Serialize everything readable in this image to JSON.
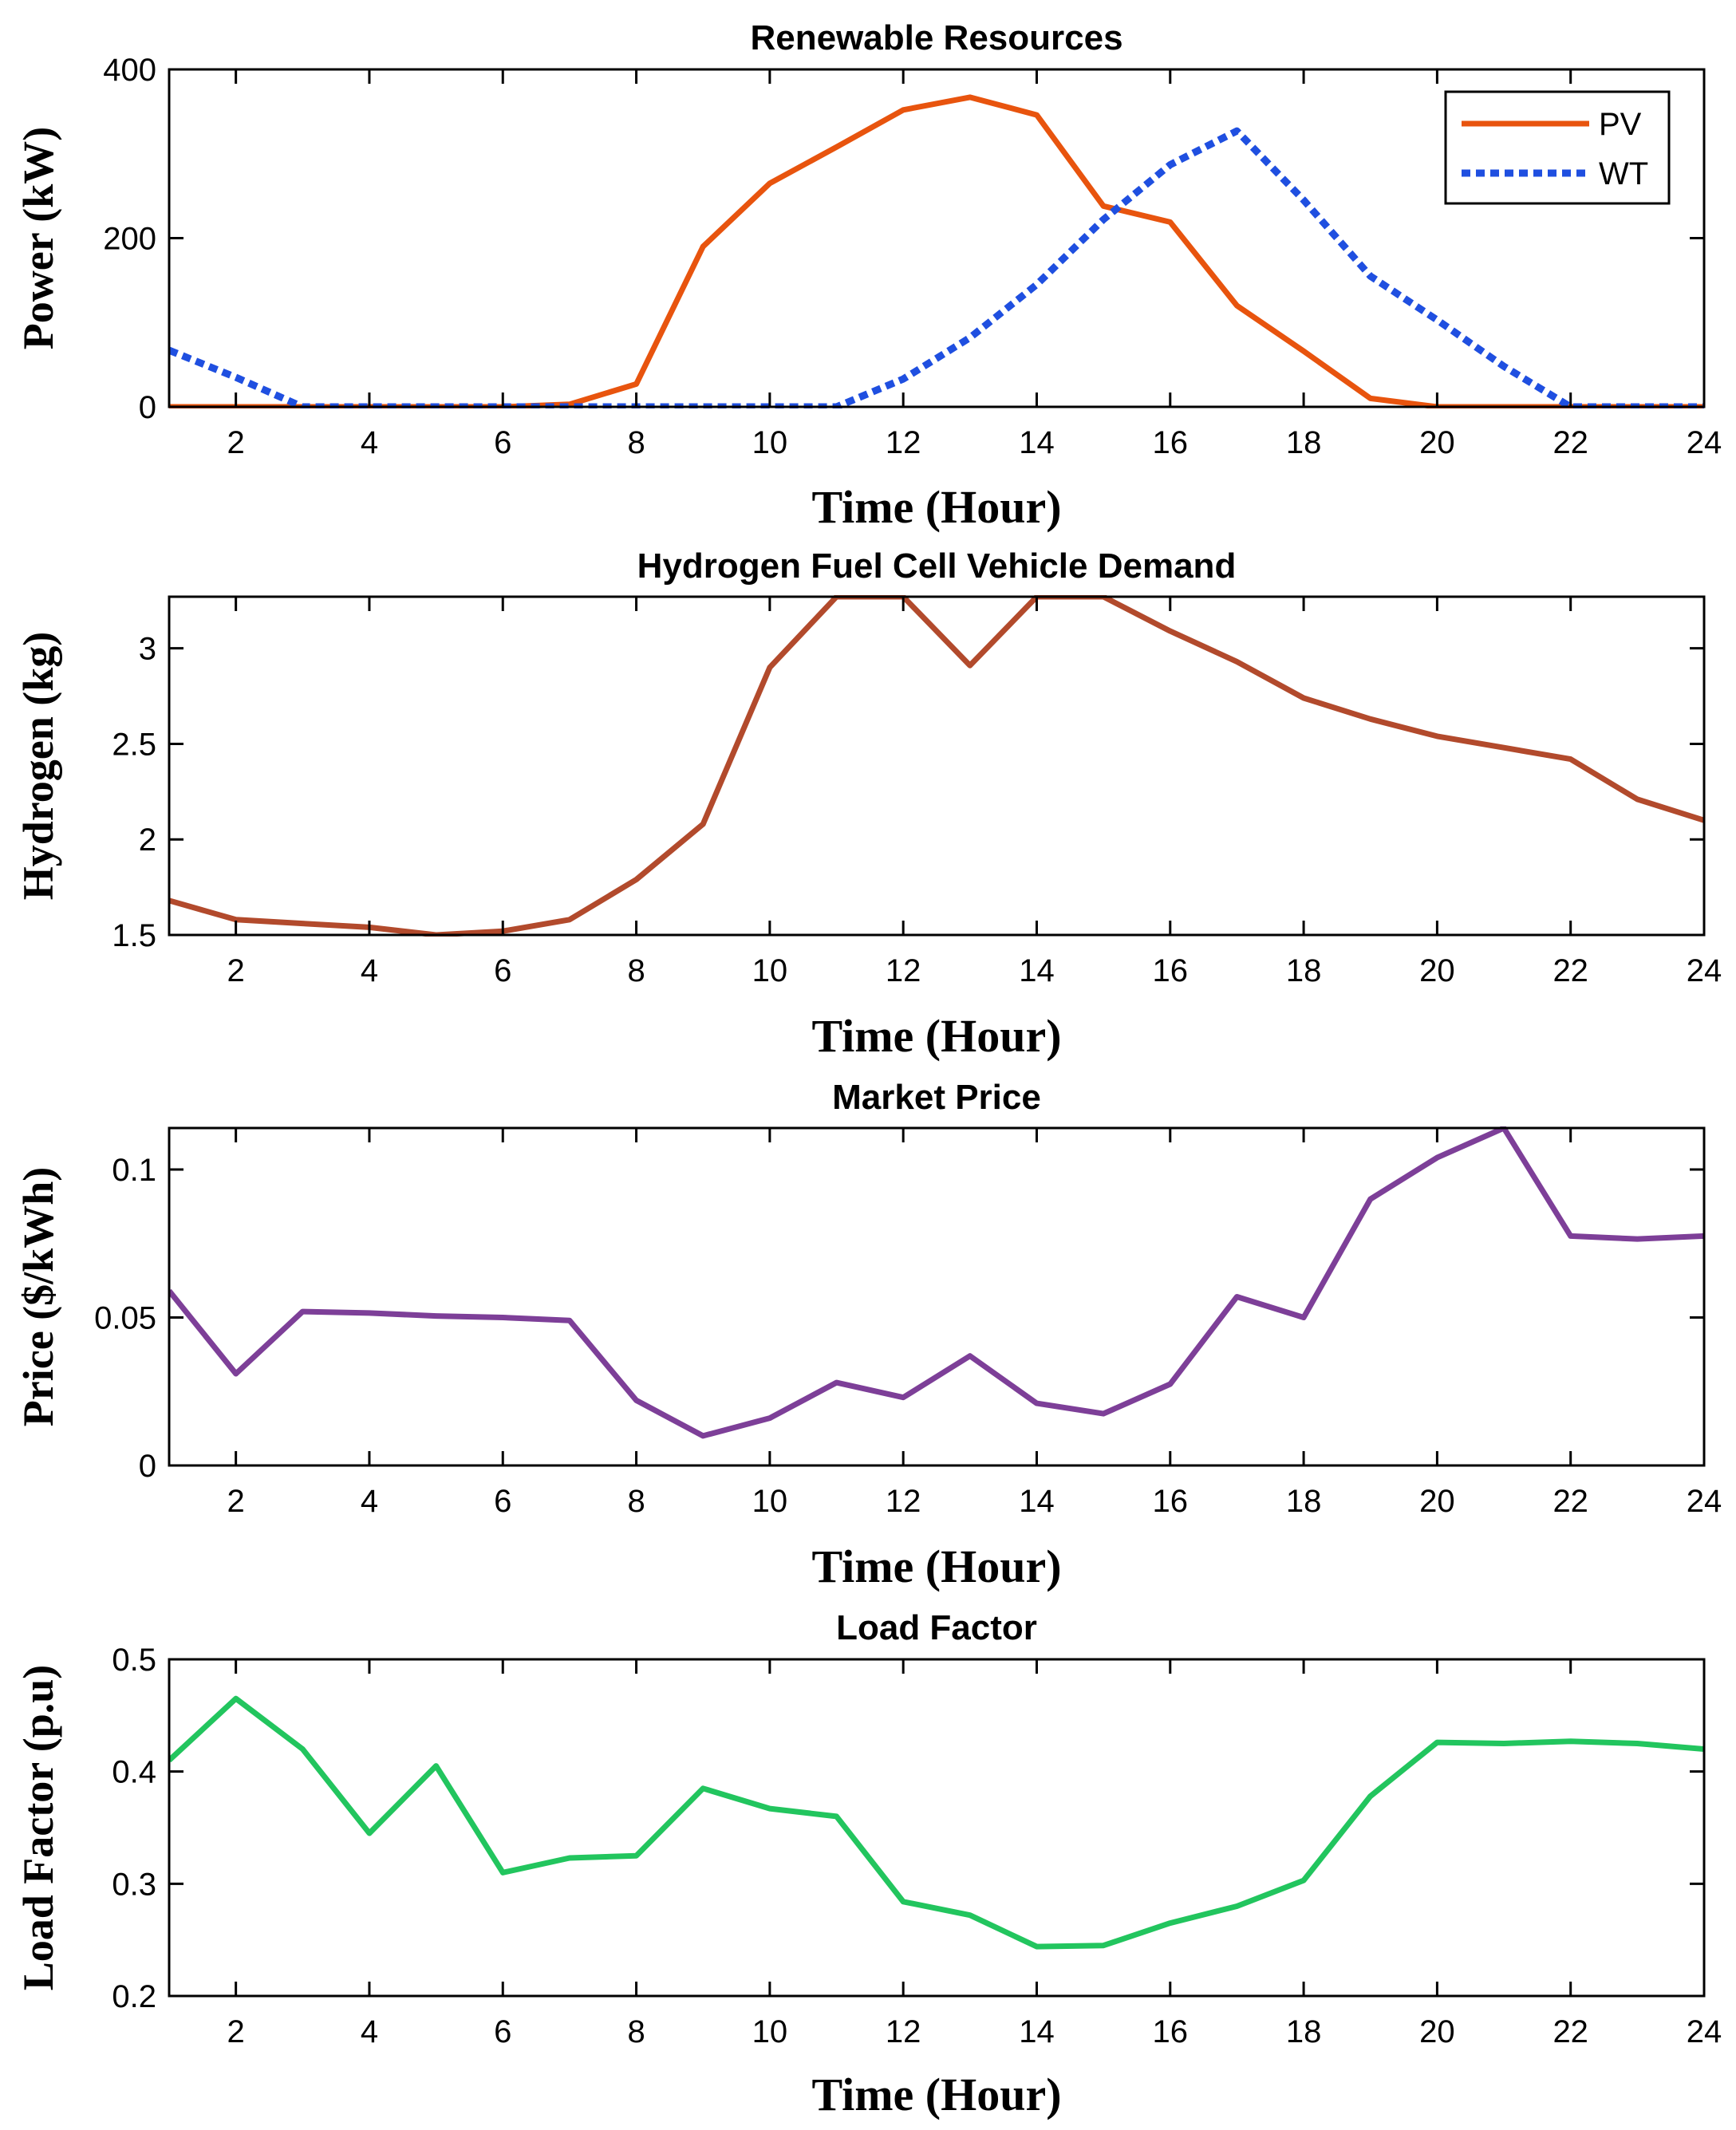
{
  "chart_data": [
    {
      "type": "line",
      "title": "Renewable Resources",
      "xlabel": "Time (Hour)",
      "ylabel": "Power (kW)",
      "xlim": [
        1,
        24
      ],
      "ylim": [
        0,
        400
      ],
      "xticks": [
        2,
        4,
        6,
        8,
        10,
        12,
        14,
        16,
        18,
        20,
        22,
        24
      ],
      "yticks": [
        0,
        200,
        400
      ],
      "ytick_labels": [
        "0",
        "200",
        "400"
      ],
      "legend": "top-right",
      "x": [
        1,
        2,
        3,
        4,
        5,
        6,
        7,
        8,
        9,
        10,
        11,
        12,
        13,
        14,
        15,
        16,
        17,
        18,
        19,
        20,
        21,
        22,
        23,
        24
      ],
      "series": [
        {
          "name": "PV",
          "color": "#e8540e",
          "style": "solid",
          "values": [
            0,
            0,
            0,
            0,
            0,
            0,
            3,
            27,
            190,
            265,
            308,
            352,
            367,
            346,
            238,
            219,
            120,
            66,
            10,
            0,
            0,
            0,
            0,
            0
          ]
        },
        {
          "name": "WT",
          "color": "#1f4fe0",
          "style": "dotted",
          "values": [
            67,
            35,
            0,
            0,
            0,
            0,
            0,
            0,
            0,
            0,
            0,
            33,
            82,
            145,
            222,
            287,
            327,
            245,
            155,
            103,
            48,
            0,
            0,
            0
          ]
        }
      ]
    },
    {
      "type": "line",
      "title": "Hydrogen Fuel Cell Vehicle Demand",
      "xlabel": "Time (Hour)",
      "ylabel": "Hydrogen (kg)",
      "xlim": [
        1,
        24
      ],
      "ylim": [
        1.5,
        3.27
      ],
      "xticks": [
        2,
        4,
        6,
        8,
        10,
        12,
        14,
        16,
        18,
        20,
        22,
        24
      ],
      "yticks": [
        1.5,
        2,
        2.5,
        3
      ],
      "ytick_labels": [
        "1.5",
        "2",
        "2.5",
        "3"
      ],
      "x": [
        1,
        2,
        3,
        4,
        5,
        6,
        7,
        8,
        9,
        10,
        11,
        12,
        13,
        14,
        15,
        16,
        17,
        18,
        19,
        20,
        21,
        22,
        23,
        24
      ],
      "series": [
        {
          "name": "Hydrogen demand",
          "color": "#b24a2c",
          "style": "solid",
          "values": [
            1.68,
            1.58,
            1.56,
            1.54,
            1.5,
            1.52,
            1.58,
            1.79,
            2.08,
            2.9,
            3.27,
            3.27,
            2.91,
            3.27,
            3.27,
            3.09,
            2.93,
            2.74,
            2.63,
            2.54,
            2.48,
            2.42,
            2.21,
            2.1
          ]
        }
      ]
    },
    {
      "type": "line",
      "title": "Market Price",
      "xlabel": "Time (Hour)",
      "ylabel": "Price ($/kWh)",
      "xlim": [
        1,
        24
      ],
      "ylim": [
        0,
        0.114
      ],
      "xticks": [
        2,
        4,
        6,
        8,
        10,
        12,
        14,
        16,
        18,
        20,
        22,
        24
      ],
      "yticks": [
        0,
        0.05,
        0.1
      ],
      "ytick_labels": [
        "0",
        "0.05",
        "0.1"
      ],
      "x": [
        1,
        2,
        3,
        4,
        5,
        6,
        7,
        8,
        9,
        10,
        11,
        12,
        13,
        14,
        15,
        16,
        17,
        18,
        19,
        20,
        21,
        22,
        23,
        24
      ],
      "series": [
        {
          "name": "Price",
          "color": "#7d3f98",
          "style": "solid",
          "values": [
            0.059,
            0.031,
            0.052,
            0.0515,
            0.0505,
            0.05,
            0.049,
            0.022,
            0.01,
            0.016,
            0.028,
            0.023,
            0.037,
            0.021,
            0.0175,
            0.0275,
            0.057,
            0.05,
            0.09,
            0.104,
            0.114,
            0.0775,
            0.0765,
            0.0775
          ]
        }
      ]
    },
    {
      "type": "line",
      "title": "Load Factor",
      "xlabel": "Time (Hour)",
      "ylabel": "Load Factor (p.u)",
      "xlim": [
        1,
        24
      ],
      "ylim": [
        0.2,
        0.5
      ],
      "xticks": [
        2,
        4,
        6,
        8,
        10,
        12,
        14,
        16,
        18,
        20,
        22,
        24
      ],
      "yticks": [
        0.2,
        0.3,
        0.4,
        0.5
      ],
      "ytick_labels": [
        "0.2",
        "0.3",
        "0.4",
        "0.5"
      ],
      "x": [
        1,
        2,
        3,
        4,
        5,
        6,
        7,
        8,
        9,
        10,
        11,
        12,
        13,
        14,
        15,
        16,
        17,
        18,
        19,
        20,
        21,
        22,
        23,
        24
      ],
      "series": [
        {
          "name": "Load factor",
          "color": "#22c55e",
          "style": "solid",
          "values": [
            0.41,
            0.465,
            0.42,
            0.345,
            0.405,
            0.31,
            0.323,
            0.325,
            0.385,
            0.367,
            0.36,
            0.284,
            0.272,
            0.244,
            0.245,
            0.265,
            0.28,
            0.303,
            0.378,
            0.426,
            0.425,
            0.427,
            0.425,
            0.42
          ]
        }
      ]
    }
  ]
}
